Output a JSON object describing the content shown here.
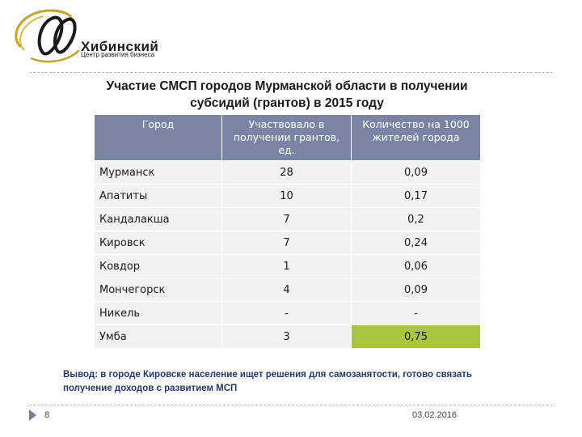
{
  "logo": {
    "title": "Хибинский",
    "subtitle": "Центр развития бизнеса"
  },
  "title": {
    "line1": "Участие СМСП городов Мурманской области в получении",
    "line2": "субсидий (грантов) в 2015 году"
  },
  "table": {
    "headers": [
      "Город",
      "Участвовало в получении грантов, ед.",
      "Количество на 1000 жителей города"
    ],
    "rows": [
      [
        "Мурманск",
        "28",
        "0,09"
      ],
      [
        "Апатиты",
        "10",
        "0,17"
      ],
      [
        "Кандалакша",
        "7",
        "0,2"
      ],
      [
        "Кировск",
        "7",
        "0,24"
      ],
      [
        "Ковдор",
        "1",
        "0,06"
      ],
      [
        "Мончегорск",
        "4",
        "0,09"
      ],
      [
        "Никель",
        "-",
        "-"
      ],
      [
        "Умба",
        "3",
        "0,75"
      ]
    ],
    "highlight_color": "#a8c63c",
    "header_color": "#7a85a3"
  },
  "conclusion": {
    "line1": "Вывод: в городе Кировске население ищет решения для самозанятости, готово связать",
    "line2": "получение доходов с развитием МСП"
  },
  "footer": {
    "page_number": "8",
    "date": "03.02.2016"
  }
}
